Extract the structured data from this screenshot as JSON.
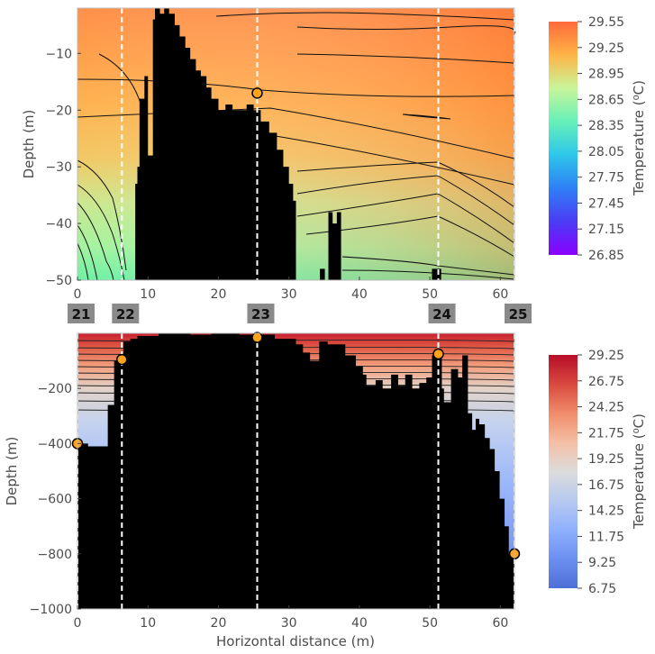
{
  "chart_data": [
    {
      "type": "heatmap",
      "title": "",
      "xlabel": "",
      "ylabel": "Depth (m)",
      "xlim": [
        0,
        62
      ],
      "ylim": [
        -50,
        -2
      ],
      "x_ticks": [
        "0",
        "10",
        "20",
        "30",
        "40",
        "50",
        "60"
      ],
      "y_ticks": [
        "−10",
        "−20",
        "−30",
        "−40",
        "−50"
      ],
      "colorbar": {
        "label": "Temperature (⁰C)",
        "ticks": [
          "29.55",
          "29.25",
          "28.95",
          "28.65",
          "28.35",
          "28.05",
          "27.75",
          "27.45",
          "27.15",
          "26.85"
        ],
        "colors": [
          "#ff6a3a",
          "#ffb447",
          "#c8f59a",
          "#66f0b8",
          "#2ec6ea",
          "#2f7ff5",
          "#4b3cf5",
          "#8a00ff"
        ]
      },
      "station_lines_x": [
        6.3,
        25.5,
        51.2,
        62
      ],
      "markers": [
        {
          "x": 25.5,
          "y": -17
        }
      ],
      "bathymetry": {
        "x": [
          7,
          8.2,
          8.2,
          8.5,
          8.5,
          8.8,
          8.8,
          9.5,
          9.5,
          10,
          10,
          10.7,
          10.7,
          11,
          11,
          11.7,
          11.7,
          12.3,
          12.3,
          13,
          13,
          13.8,
          13.8,
          14.5,
          14.5,
          15.3,
          15.3,
          16,
          16,
          16.8,
          16.8,
          17.5,
          17.5,
          18.3,
          18.3,
          19,
          19,
          20,
          20,
          21,
          21,
          22,
          22,
          24,
          24,
          25,
          25,
          26,
          26,
          27.2,
          27.2,
          28.3,
          28.3,
          29.2,
          29.2,
          30,
          30,
          30.6,
          30.6,
          31,
          31
        ],
        "depth": [
          -50,
          -50,
          -33,
          -33,
          -30,
          -30,
          -18,
          -18,
          -14,
          -14,
          -28,
          -28,
          -4,
          -4,
          -2,
          -2,
          -3,
          -3,
          -2,
          -2,
          -3,
          -3,
          -5,
          -5,
          -7,
          -7,
          -9,
          -9,
          -11,
          -11,
          -13,
          -13,
          -14,
          -14,
          -16,
          -16,
          -18,
          -18,
          -20,
          -20,
          -19,
          -19,
          -20,
          -20,
          -19,
          -19,
          -20,
          -20,
          -22,
          -22,
          -24,
          -24,
          -27,
          -27,
          -30,
          -30,
          -33,
          -33,
          -36,
          -36,
          -50
        ],
        "extra_peaks": [
          {
            "x": [
              34.4,
              34.4,
              35.1,
              35.1
            ],
            "depth": [
              -50,
              -48,
              -48,
              -50
            ]
          },
          {
            "x": [
              35.6,
              35.6,
              36.2,
              36.2,
              36.8,
              36.8,
              37.4,
              37.4
            ],
            "depth": [
              -50,
              -38,
              -38,
              -40,
              -40,
              -38,
              -38,
              -50
            ]
          },
          {
            "x": [
              50.3,
              50.3,
              51.6,
              51.6
            ],
            "depth": [
              -50,
              -48,
              -48,
              -50
            ]
          }
        ]
      }
    },
    {
      "type": "heatmap",
      "title": "",
      "xlabel": "Horizontal distance (m)",
      "ylabel": "Depth (m)",
      "xlim": [
        0,
        62
      ],
      "ylim": [
        -1000,
        0
      ],
      "x_ticks": [
        "0",
        "10",
        "20",
        "30",
        "40",
        "50",
        "60"
      ],
      "y_ticks": [
        "−200",
        "−400",
        "−600",
        "−800",
        "−1000"
      ],
      "colorbar": {
        "label": "Temperature (⁰C)",
        "ticks": [
          "29.25",
          "26.75",
          "24.25",
          "21.75",
          "19.25",
          "16.75",
          "14.25",
          "11.75",
          "9.25",
          "6.75"
        ],
        "colors": [
          "#b70d28",
          "#d9493f",
          "#f08c69",
          "#f5bfa5",
          "#dcdcdc",
          "#b6c9ef",
          "#8fb0fd",
          "#6b8ff0",
          "#4e6fd8"
        ]
      },
      "station_lines_x": [
        0,
        6.3,
        25.5,
        51.2,
        62
      ],
      "markers": [
        {
          "x": 0,
          "y": -400
        },
        {
          "x": 6.3,
          "y": -95
        },
        {
          "x": 25.5,
          "y": -15
        },
        {
          "x": 51.2,
          "y": -75
        },
        {
          "x": 62,
          "y": -800
        }
      ],
      "bathymetry": {
        "x": [
          0,
          0,
          1.5,
          1.5,
          4.3,
          4.3,
          5.2,
          5.2,
          6.5,
          6.5,
          7.5,
          7.5,
          8.5,
          8.5,
          11.5,
          11.5,
          16,
          16,
          19,
          19,
          23,
          23,
          28,
          28,
          31,
          31,
          32,
          32,
          33,
          33,
          34.3,
          34.3,
          35.5,
          35.5,
          38,
          38,
          39.5,
          39.5,
          40.5,
          40.5,
          41,
          41,
          42.3,
          42.3,
          43.3,
          43.3,
          44.5,
          44.5,
          45.5,
          45.5,
          46.5,
          46.5,
          47.5,
          47.5,
          48.5,
          48.5,
          49.5,
          49.5,
          50.3,
          50.3,
          51.7,
          51.7,
          52,
          52,
          53,
          53,
          54,
          54,
          54.6,
          54.6,
          55.4,
          55.4,
          56,
          56,
          56.5,
          56.5,
          57,
          57,
          57.8,
          57.8,
          58.5,
          58.5,
          59.2,
          59.2,
          59.9,
          59.9,
          60.6,
          60.6,
          61.2,
          61.2,
          62,
          62
        ],
        "depth": [
          -1000,
          -400,
          -400,
          -410,
          -410,
          -260,
          -260,
          -100,
          -100,
          -30,
          -30,
          -20,
          -20,
          -10,
          -10,
          0,
          0,
          -5,
          -5,
          0,
          0,
          -5,
          -5,
          -20,
          -20,
          -40,
          -40,
          -70,
          -70,
          -100,
          -100,
          -30,
          -30,
          -40,
          -40,
          -80,
          -80,
          -120,
          -120,
          -150,
          -150,
          -190,
          -190,
          -170,
          -170,
          -200,
          -200,
          -150,
          -150,
          -190,
          -190,
          -150,
          -150,
          -200,
          -200,
          -180,
          -180,
          -160,
          -160,
          -80,
          -80,
          -200,
          -200,
          -250,
          -250,
          -130,
          -130,
          -160,
          -160,
          -80,
          -80,
          -290,
          -290,
          -350,
          -350,
          -310,
          -310,
          -330,
          -330,
          -380,
          -380,
          -420,
          -420,
          -500,
          -500,
          -600,
          -600,
          -700,
          -700,
          -800,
          -800,
          -1000
        ]
      }
    }
  ],
  "station_labels": [
    "21",
    "22",
    "23",
    "24",
    "25"
  ]
}
